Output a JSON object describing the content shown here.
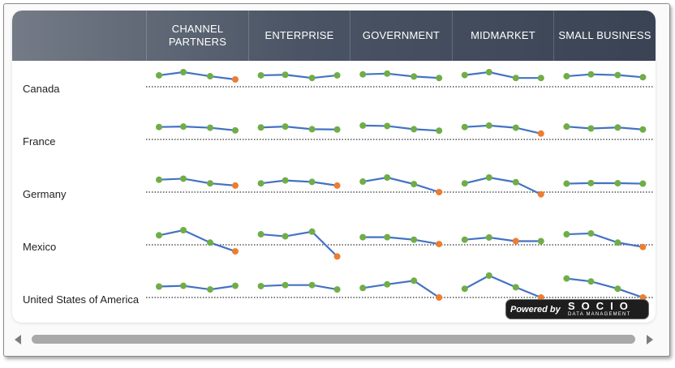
{
  "columns": [
    "CHANNEL PARTNERS",
    "ENTERPRISE",
    "GOVERNMENT",
    "MIDMARKET",
    "SMALL BUSINESS"
  ],
  "rows": [
    "Canada",
    "France",
    "Germany",
    "Mexico",
    "United States of America"
  ],
  "colors": {
    "line": "#4472c4",
    "point": "#70ad47",
    "low_point": "#ed7d31",
    "baseline": "#555555"
  },
  "chart_data": {
    "type": "line",
    "description_of_layout": "small multiples grid, one sparkline per row x column",
    "x": [
      "p1",
      "p2",
      "p3",
      "p4"
    ],
    "lowest_point_highlighted": true,
    "series": [
      {
        "row": "Canada",
        "column": "CHANNEL PARTNERS",
        "values": [
          0.78,
          1.0,
          0.72,
          0.5
        ]
      },
      {
        "row": "Canada",
        "column": "ENTERPRISE",
        "values": [
          0.78,
          0.82,
          0.6,
          0.78
        ]
      },
      {
        "row": "Canada",
        "column": "GOVERNMENT",
        "values": [
          0.85,
          0.9,
          0.7,
          0.6
        ]
      },
      {
        "row": "Canada",
        "column": "MIDMARKET",
        "values": [
          0.8,
          1.0,
          0.6,
          0.6
        ]
      },
      {
        "row": "Canada",
        "column": "SMALL BUSINESS",
        "values": [
          0.72,
          0.85,
          0.8,
          0.65
        ]
      },
      {
        "row": "France",
        "column": "CHANNEL PARTNERS",
        "values": [
          0.85,
          0.88,
          0.8,
          0.62
        ]
      },
      {
        "row": "France",
        "column": "ENTERPRISE",
        "values": [
          0.82,
          0.88,
          0.7,
          0.68
        ]
      },
      {
        "row": "France",
        "column": "GOVERNMENT",
        "values": [
          0.95,
          0.92,
          0.7,
          0.6
        ]
      },
      {
        "row": "France",
        "column": "MIDMARKET",
        "values": [
          0.85,
          0.95,
          0.8,
          0.4
        ]
      },
      {
        "row": "France",
        "column": "SMALL BUSINESS",
        "values": [
          0.88,
          0.75,
          0.82,
          0.68
        ]
      },
      {
        "row": "Germany",
        "column": "CHANNEL PARTNERS",
        "values": [
          0.85,
          0.92,
          0.6,
          0.45
        ]
      },
      {
        "row": "Germany",
        "column": "ENTERPRISE",
        "values": [
          0.6,
          0.8,
          0.7,
          0.45
        ]
      },
      {
        "row": "Germany",
        "column": "GOVERNMENT",
        "values": [
          0.72,
          1.0,
          0.55,
          0.0
        ]
      },
      {
        "row": "Germany",
        "column": "MIDMARKET",
        "values": [
          0.6,
          1.0,
          0.68,
          -0.15
        ]
      },
      {
        "row": "Germany",
        "column": "SMALL BUSINESS",
        "values": [
          0.58,
          0.62,
          0.61,
          0.58
        ]
      },
      {
        "row": "Mexico",
        "column": "CHANNEL PARTNERS",
        "values": [
          0.65,
          1.0,
          0.15,
          -0.45
        ]
      },
      {
        "row": "Mexico",
        "column": "ENTERPRISE",
        "values": [
          0.72,
          0.58,
          0.9,
          -0.8
        ]
      },
      {
        "row": "Mexico",
        "column": "GOVERNMENT",
        "values": [
          0.52,
          0.52,
          0.35,
          0.05
        ]
      },
      {
        "row": "Mexico",
        "column": "MIDMARKET",
        "values": [
          0.35,
          0.5,
          0.25,
          0.25
        ]
      },
      {
        "row": "Mexico",
        "column": "SMALL BUSINESS",
        "values": [
          0.72,
          0.78,
          0.15,
          -0.15
        ]
      },
      {
        "row": "United States of America",
        "column": "CHANNEL PARTNERS",
        "values": [
          0.75,
          0.8,
          0.55,
          0.8
        ]
      },
      {
        "row": "United States of America",
        "column": "ENTERPRISE",
        "values": [
          0.78,
          0.85,
          0.85,
          0.55
        ]
      },
      {
        "row": "United States of America",
        "column": "GOVERNMENT",
        "values": [
          0.65,
          0.9,
          1.15,
          0.0
        ]
      },
      {
        "row": "United States of America",
        "column": "MIDMARKET",
        "values": [
          0.6,
          1.5,
          0.7,
          0.0
        ]
      },
      {
        "row": "United States of America",
        "column": "SMALL BUSINESS",
        "values": [
          1.3,
          1.1,
          0.6,
          0.0
        ]
      }
    ]
  },
  "badge": {
    "prefix": "Powered by",
    "brand": "SOCIO",
    "subtitle": "DATA MANAGEMENT"
  }
}
